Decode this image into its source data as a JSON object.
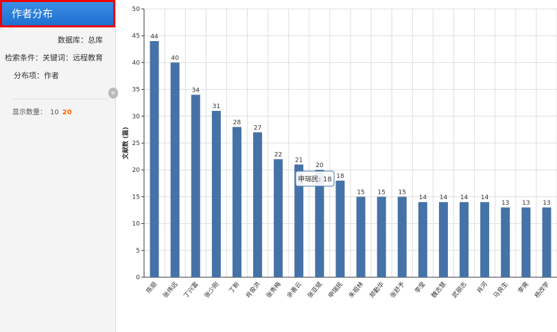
{
  "sidebar": {
    "title": "作者分布",
    "items": [
      {
        "label": "数据库：",
        "value": "总库"
      },
      {
        "label": "检索条件：",
        "value": "关键词：远程教育"
      },
      {
        "label": "分布项：",
        "value": "作者"
      }
    ],
    "count_label": "显示数量：",
    "count_options": [
      "10",
      "20"
    ],
    "collapse": "«"
  },
  "chart_data": {
    "type": "bar",
    "y_label": "文献数 (篇)",
    "categories": [
      "陈丽",
      "张伟远",
      "丁兴富",
      "张少刚",
      "丁新",
      "肖俊洪",
      "张秀梅",
      "余善云",
      "张亚斌",
      "申瑞民",
      "朱祖林",
      "郑勤华",
      "张舒予",
      "李莹",
      "魏志慧",
      "武丽志",
      "肖河",
      "马良生",
      "李爽",
      "杨改学"
    ],
    "values": [
      44,
      40,
      34,
      31,
      28,
      27,
      22,
      21,
      20,
      18,
      15,
      15,
      15,
      14,
      14,
      14,
      14,
      13,
      13,
      13
    ],
    "color": "#4572a7",
    "ylim": [
      0,
      50
    ],
    "yticks": [
      0,
      5,
      10,
      15,
      20,
      25,
      30,
      35,
      40,
      45,
      50
    ],
    "grid": true,
    "tooltip": "申瑞民: 18"
  }
}
